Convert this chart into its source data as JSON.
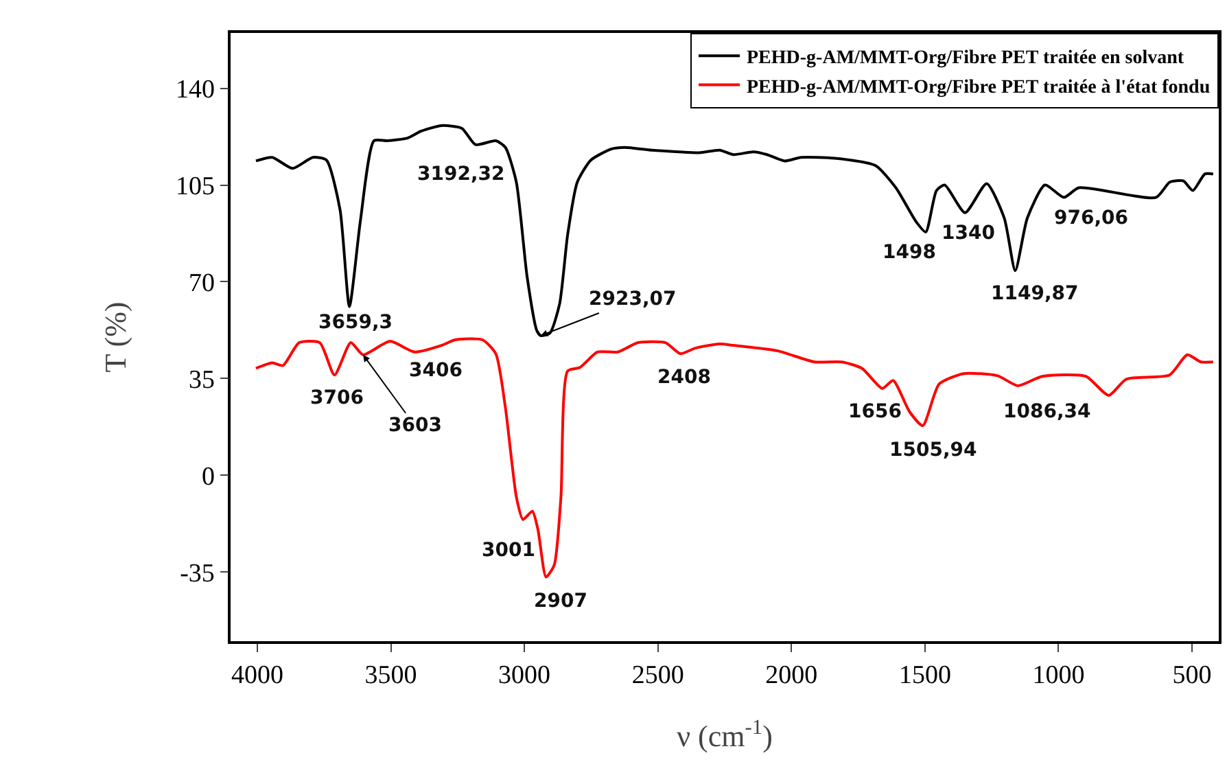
{
  "chart_data": {
    "type": "line",
    "xlabel": "ν (cm$^{-1}$)",
    "ylabel": "T (%)",
    "xlim": [
      4100,
      400
    ],
    "xticks": [
      4000,
      3500,
      3000,
      2500,
      2000,
      1500,
      1000,
      500
    ],
    "ylim": [
      -60,
      160
    ],
    "yticks": [
      -35,
      0,
      35,
      70,
      105,
      140
    ],
    "grid": false,
    "legend": "top right",
    "marker": "none",
    "line_style": "solid",
    "series": [
      {
        "name": "PEHD-g-AM/MMT-Org/Fibre PET traitée en solvant",
        "color": "#000000",
        "x": [
          4005,
          3944,
          3868,
          3792,
          3741,
          3690,
          3655,
          3614,
          3563,
          3513,
          3437,
          3386,
          3310,
          3234,
          3183,
          3107,
          3071,
          3030,
          2990,
          2954,
          2939,
          2904,
          2868,
          2838,
          2802,
          2751,
          2675,
          2624,
          2523,
          2421,
          2345,
          2269,
          2218,
          2142,
          2091,
          2025,
          1964,
          1838,
          1685,
          1609,
          1533,
          1497,
          1457,
          1426,
          1350,
          1269,
          1203,
          1162,
          1117,
          1051,
          980,
          924,
          635,
          584,
          533,
          497,
          452,
          421
        ],
        "values": [
          113.7,
          115,
          111,
          115,
          114,
          96,
          61,
          92,
          121,
          121,
          122,
          124.5,
          126.5,
          125.5,
          119.6,
          121,
          118.6,
          106,
          72,
          52.5,
          50.5,
          51.5,
          62,
          87,
          106,
          114,
          118,
          118.6,
          117.6,
          117,
          116.7,
          117.6,
          116,
          117,
          116,
          113.7,
          115,
          114.7,
          112,
          104,
          91.7,
          88,
          103,
          105,
          95,
          105.5,
          93,
          74,
          93,
          105,
          100.5,
          104,
          100.5,
          106,
          106.5,
          103,
          109,
          109
        ]
      },
      {
        "name": "PEHD-g-AM/MMT-Org/Fibre PET traitée à l'état fondu",
        "color": "#ff0000",
        "x": [
          4005,
          3944,
          3904,
          3843,
          3766,
          3711,
          3650,
          3604,
          3503,
          3411,
          3310,
          3259,
          3157,
          3107,
          3071,
          3030,
          3005,
          2970,
          2949,
          2919,
          2888,
          2863,
          2838,
          2792,
          2726,
          2650,
          2574,
          2472,
          2416,
          2360,
          2269,
          2218,
          2051,
          1914,
          1812,
          1736,
          1660,
          1619,
          1558,
          1508,
          1447,
          1355,
          1228,
          1152,
          1061,
          898,
          812,
          746,
          584,
          518,
          467,
          421
        ],
        "values": [
          38.7,
          40.7,
          39.7,
          48,
          48,
          36.3,
          48,
          43.6,
          48.5,
          44.6,
          47,
          49,
          49,
          44,
          24.5,
          -7.8,
          -16,
          -13,
          -19.7,
          -36.8,
          -32.4,
          -7.8,
          37.7,
          39,
          44.6,
          44.6,
          48,
          48,
          44,
          46,
          47.5,
          47,
          45,
          41,
          41,
          38.7,
          31.4,
          34.3,
          23,
          18,
          33,
          36.8,
          36,
          32.4,
          35.8,
          35.8,
          28.9,
          34.8,
          36.3,
          43.6,
          41,
          41
        ]
      }
    ],
    "annotations": [
      {
        "text": "3192,32",
        "x": 3183,
        "y": 119.6
      },
      {
        "text": "3659,3",
        "x": 3655,
        "y": 61
      },
      {
        "text": "2923,07",
        "x": 2939,
        "y": 50.5
      },
      {
        "text": "1498",
        "x": 1497,
        "y": 88
      },
      {
        "text": "1340",
        "x": 1350,
        "y": 95
      },
      {
        "text": "1149,87",
        "x": 1162,
        "y": 74
      },
      {
        "text": "976,06",
        "x": 980,
        "y": 100.5
      },
      {
        "text": "3706",
        "x": 3711,
        "y": 36.3
      },
      {
        "text": "3603",
        "x": 3604,
        "y": 43.6
      },
      {
        "text": "3406",
        "x": 3411,
        "y": 44.6
      },
      {
        "text": "3001",
        "x": 3005,
        "y": -16
      },
      {
        "text": "2907",
        "x": 2919,
        "y": -36.8
      },
      {
        "text": "2408",
        "x": 2416,
        "y": 44
      },
      {
        "text": "1656",
        "x": 1660,
        "y": 31.4
      },
      {
        "text": "1505,94",
        "x": 1508,
        "y": 18
      },
      {
        "text": "1086,34",
        "x": 1061,
        "y": 35.8
      }
    ]
  }
}
